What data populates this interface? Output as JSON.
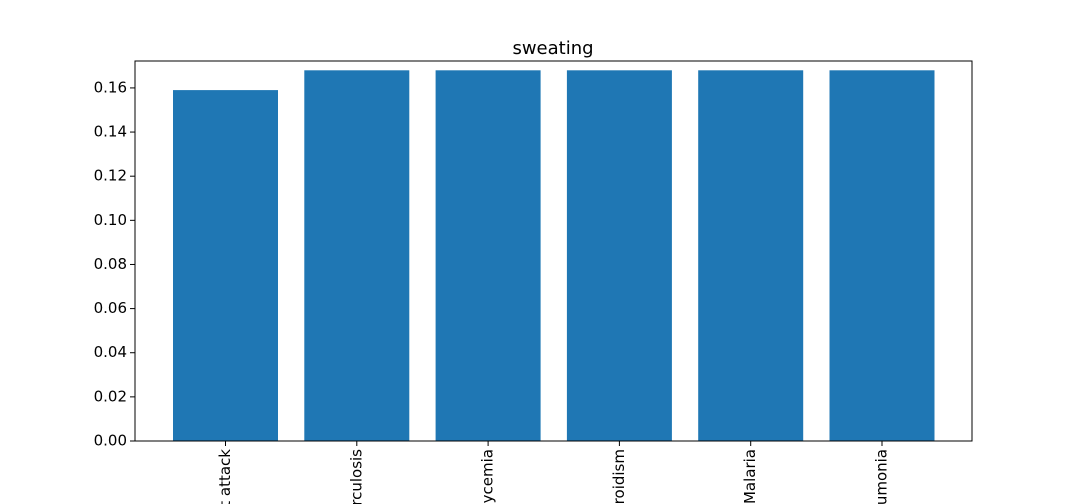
{
  "chart_data": {
    "type": "bar",
    "title": "sweating",
    "xlabel": "",
    "ylabel": "",
    "categories": [
      "Heart attack",
      "Tuberculosis",
      "Hypoglycemia",
      "Hyperthyroidism",
      "Malaria",
      "Pneumonia"
    ],
    "categories_visible": [
      "t attack",
      "rculosis",
      "ycemia",
      "roidism",
      "Malaria",
      "umonia"
    ],
    "values": [
      0.159,
      0.168,
      0.168,
      0.168,
      0.168,
      0.168
    ],
    "ylim": [
      0,
      0.1722
    ],
    "yticks": [
      0.0,
      0.02,
      0.04,
      0.06,
      0.08,
      0.1,
      0.12,
      0.14,
      0.16
    ],
    "ytick_labels": [
      "0.00",
      "0.02",
      "0.04",
      "0.06",
      "0.08",
      "0.10",
      "0.12",
      "0.14",
      "0.16"
    ],
    "bar_color": "#1f77b4",
    "grid": false,
    "legend": "none"
  }
}
